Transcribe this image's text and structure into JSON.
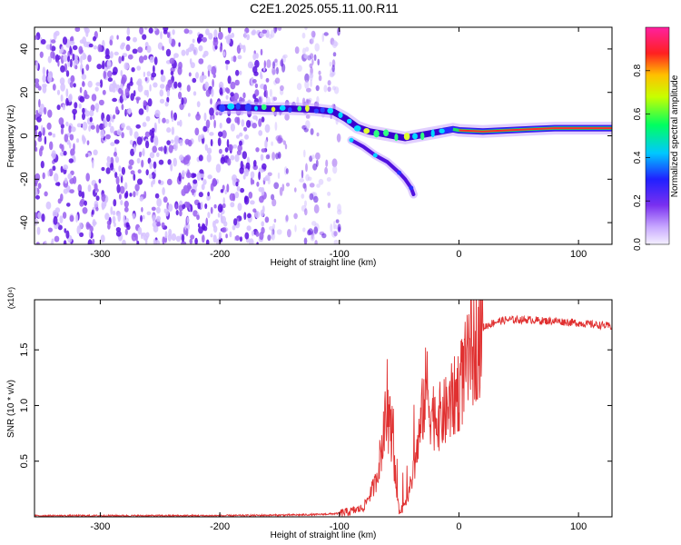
{
  "title": "C2E1.2025.055.11.00.R11",
  "colors": {
    "snr_line": "#e03030",
    "track_dark": "#3a00c8",
    "noise": "#7a3ce8",
    "axes": "#000000"
  },
  "colorbar": {
    "label": "Normalized spectral amplitude",
    "ticks": [
      "0.0",
      "0.2",
      "0.4",
      "0.6",
      "0.8"
    ],
    "tick_values": [
      0.0,
      0.2,
      0.4,
      0.6,
      0.8
    ],
    "range": [
      0,
      1
    ],
    "colormap": "rainbow (violet-blue-cyan-green-yellow-red-magenta)"
  },
  "chart_data": [
    {
      "type": "heatmap",
      "title": "C2E1.2025.055.11.00.R11",
      "xlabel": "Height of straight line (km)",
      "ylabel": "Frequency (Hz)",
      "xlim": [
        -355,
        128
      ],
      "ylim": [
        -50,
        50
      ],
      "xticks": [
        -300,
        -200,
        -100,
        0,
        100
      ],
      "yticks": [
        -40,
        -20,
        0,
        20,
        40
      ],
      "xticklabels": [
        "-300",
        "-200",
        "-100",
        "0",
        "100"
      ],
      "yticklabels": [
        "-40",
        "-20",
        "0",
        "20",
        "40"
      ],
      "grid": false,
      "features": {
        "noise_region_x": [
          -355,
          -100
        ],
        "main_track": {
          "x": [
            -200,
            -180,
            -160,
            -140,
            -120,
            -105,
            -95,
            -85,
            -75,
            -65,
            -55,
            -45,
            -35,
            -25,
            -15,
            -5,
            0,
            20,
            40,
            60,
            80,
            100,
            128
          ],
          "y": [
            13,
            13,
            12.5,
            12.5,
            12,
            11,
            8,
            4,
            2,
            1,
            0,
            -1,
            0,
            1,
            2,
            3,
            2.5,
            2,
            2.5,
            3,
            3.5,
            3.5,
            3.5
          ]
        },
        "branch_track": {
          "x": [
            -90,
            -80,
            -70,
            -60,
            -50,
            -45,
            -40,
            -38
          ],
          "y": [
            -2,
            -5,
            -9,
            -12,
            -17,
            -20,
            -24,
            -27
          ]
        }
      }
    },
    {
      "type": "line",
      "xlabel": "Height of straight line (km)",
      "ylabel": "SNR (10 * v/v)",
      "y_multiplier": "(x10⁴)",
      "xlim": [
        -355,
        128
      ],
      "ylim": [
        0,
        1.95
      ],
      "xticks": [
        -300,
        -200,
        -100,
        0,
        100
      ],
      "yticks": [
        0.5,
        1.0,
        1.5
      ],
      "xticklabels": [
        "-300",
        "-200",
        "-100",
        "0",
        "100"
      ],
      "yticklabels": [
        "0.5",
        "1.0",
        "1.5"
      ],
      "grid": false,
      "series": [
        {
          "x": [
            -355,
            -300,
            -250,
            -200,
            -150,
            -120,
            -100,
            -90,
            -80,
            -70,
            -65,
            -60,
            -57,
            -55,
            -52,
            -50,
            -45,
            -40,
            -35,
            -32,
            -30,
            -27,
            -25,
            -20,
            -15,
            -10,
            -5,
            0,
            5,
            10,
            15,
            20,
            30,
            40,
            50,
            60,
            70,
            80,
            90,
            100,
            110,
            120,
            128
          ],
          "y": [
            0.01,
            0.01,
            0.01,
            0.01,
            0.015,
            0.02,
            0.03,
            0.05,
            0.08,
            0.3,
            0.6,
            0.9,
            0.8,
            0.6,
            0.2,
            0.05,
            0.1,
            0.3,
            0.6,
            0.8,
            1.0,
            1.2,
            1.0,
            0.9,
            0.9,
            0.95,
            1.05,
            1.15,
            1.3,
            1.45,
            1.6,
            1.7,
            1.75,
            1.77,
            1.77,
            1.77,
            1.76,
            1.76,
            1.75,
            1.74,
            1.73,
            1.72,
            1.71
          ]
        }
      ]
    }
  ]
}
